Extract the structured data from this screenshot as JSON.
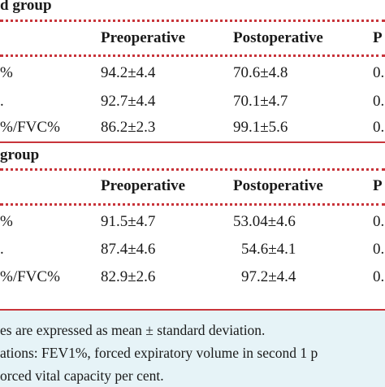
{
  "groups": [
    {
      "title": "d group",
      "headers": [
        "Preoperative",
        "Postoperative",
        "P"
      ],
      "rows": [
        {
          "label": "%",
          "pre": "94.2±4.4",
          "post": "70.6±4.8",
          "p": "0."
        },
        {
          "label": ".",
          "pre": "92.7±4.4",
          "post": "70.1±4.7",
          "p": "0."
        },
        {
          "label": "%/FVC%",
          "pre": "86.2±2.3",
          "post": "99.1±5.6",
          "p": "0."
        }
      ]
    },
    {
      "title": "group",
      "headers": [
        "Preoperative",
        "Postoperative",
        "P"
      ],
      "rows": [
        {
          "label": "%",
          "pre": "91.5±4.7",
          "post": "53.04±4.6",
          "p": "0."
        },
        {
          "label": ".",
          "pre": "87.4±4.6",
          "post": "54.6±4.1",
          "p": "0."
        },
        {
          "label": "%/FVC%",
          "pre": "82.9±2.6",
          "post": "97.2±4.4",
          "p": "0."
        }
      ]
    }
  ],
  "notes": [
    "es are expressed as mean ± standard deviation.",
    "ations: FEV1%, forced expiratory volume in second 1 p",
    "orced vital capacity per cent."
  ],
  "colors": {
    "rule": "#c8343a",
    "notes_bg": "#e6f3f7"
  }
}
